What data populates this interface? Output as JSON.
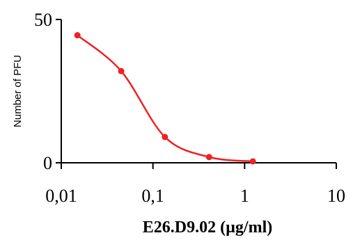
{
  "chart_data": {
    "type": "line",
    "title": "",
    "xlabel": "E26.D9.02 (µg/ml)",
    "ylabel": "Number of PFU",
    "xscale": "log",
    "xlim": [
      0.01,
      10
    ],
    "ylim": [
      0,
      50
    ],
    "x_tick_labels": [
      "0,01",
      "0,1",
      "1",
      "10"
    ],
    "y_tick_labels": [
      "0",
      "50"
    ],
    "grid": false,
    "legend": "none",
    "series": [
      {
        "color": "#ee2222",
        "x": [
          0.015,
          0.045,
          0.135,
          0.41,
          1.23
        ],
        "y": [
          44.5,
          32,
          9,
          2,
          0.5
        ]
      }
    ]
  }
}
